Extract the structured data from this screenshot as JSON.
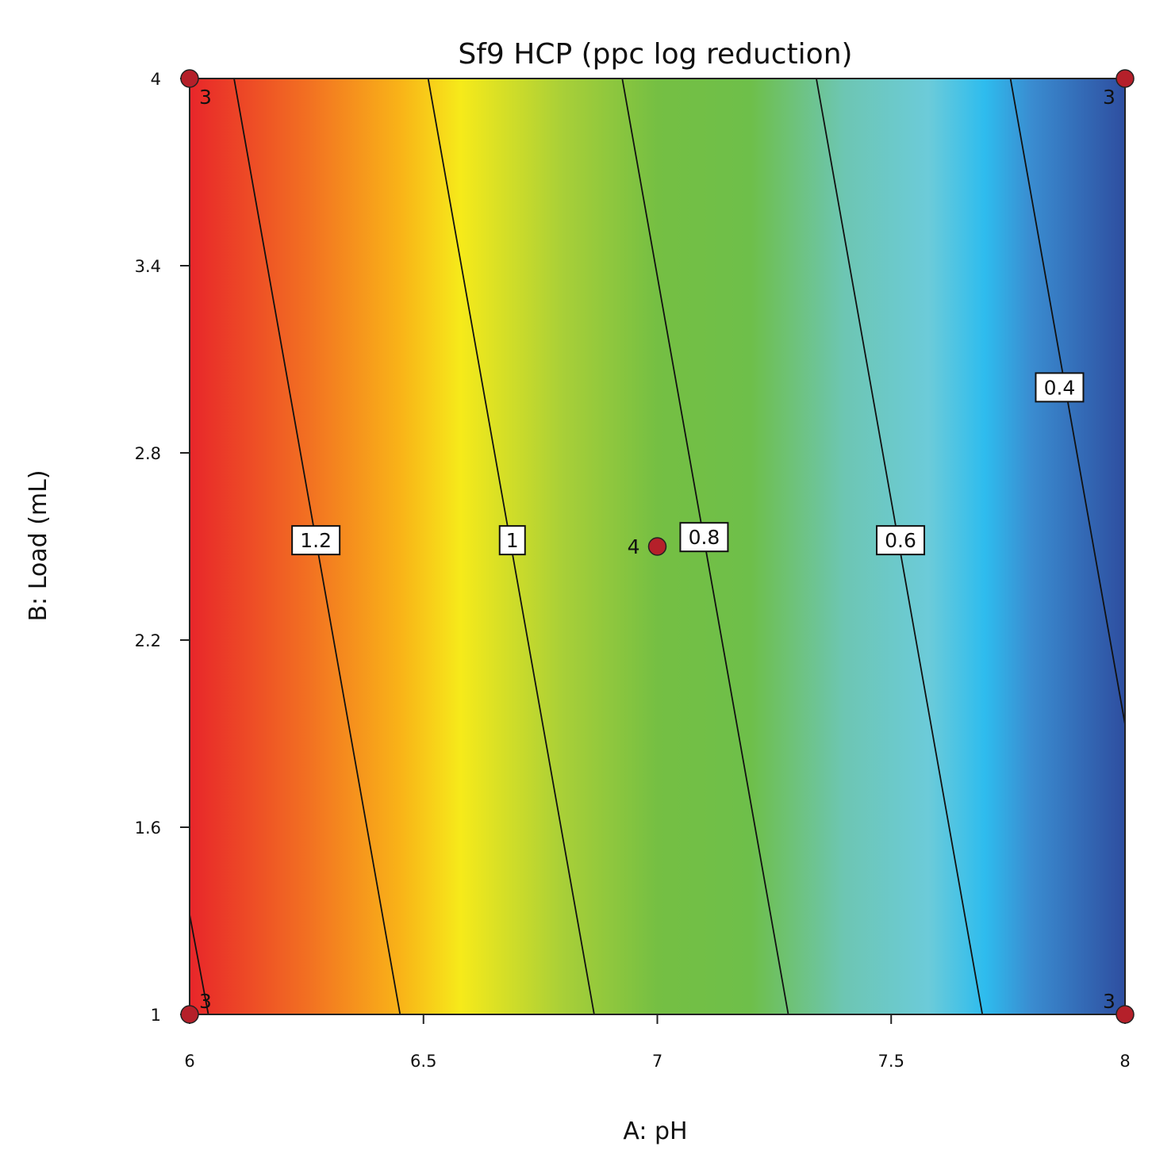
{
  "chart_data": {
    "type": "contour",
    "title": "Sf9 HCP (ppc log reduction)",
    "xlabel": "A: pH",
    "ylabel": "B: Load (mL)",
    "xlim": [
      6,
      8
    ],
    "ylim": [
      1,
      4
    ],
    "x_ticks": [
      6,
      6.5,
      7,
      7.5,
      8
    ],
    "x_tick_labels": [
      "6",
      "6.5",
      "7",
      "7.5",
      "8"
    ],
    "y_ticks": [
      1,
      1.6,
      2.2,
      2.8,
      3.4,
      4
    ],
    "y_tick_labels": [
      "1",
      "1.6",
      "2.2",
      "2.8",
      "3.4",
      "4"
    ],
    "grid": false,
    "colormap": {
      "low": "#2b4fa0",
      "high": "#e8262a",
      "stops": [
        {
          "x": 6.0,
          "color": "#e8262a"
        },
        {
          "x": 6.25,
          "color": "#f26f22"
        },
        {
          "x": 6.45,
          "color": "#f9b318"
        },
        {
          "x": 6.58,
          "color": "#f6ea1a"
        },
        {
          "x": 6.8,
          "color": "#a8cf38"
        },
        {
          "x": 7.0,
          "color": "#75bf43"
        },
        {
          "x": 7.2,
          "color": "#6ebf4a"
        },
        {
          "x": 7.4,
          "color": "#6dc6b3"
        },
        {
          "x": 7.58,
          "color": "#6ccbd9"
        },
        {
          "x": 7.7,
          "color": "#2ebcee"
        },
        {
          "x": 7.8,
          "color": "#3a8cd0"
        },
        {
          "x": 8.0,
          "color": "#2e4ea0"
        }
      ]
    },
    "contours": [
      {
        "label": "1.2",
        "points": [
          [
            6.095,
            4
          ],
          [
            6.45,
            1
          ]
        ],
        "label_at": [
          6.27,
          2.52
        ]
      },
      {
        "label": "1",
        "points": [
          [
            6.51,
            4
          ],
          [
            6.865,
            1
          ]
        ],
        "label_at": [
          6.69,
          2.52
        ]
      },
      {
        "label": "0.8",
        "points": [
          [
            6.925,
            4
          ],
          [
            7.28,
            1
          ]
        ],
        "label_at": [
          7.1,
          2.53
        ]
      },
      {
        "label": "0.6",
        "points": [
          [
            7.34,
            4
          ],
          [
            7.695,
            1
          ]
        ],
        "label_at": [
          7.52,
          2.52
        ]
      },
      {
        "label": "0.4",
        "points": [
          [
            7.755,
            4
          ],
          [
            8.0,
            1.93
          ]
        ],
        "label_at": [
          7.86,
          3.01
        ]
      },
      {
        "label": "",
        "points": [
          [
            6.0,
            1.32
          ],
          [
            6.04,
            1
          ]
        ],
        "label_at": null
      }
    ],
    "design_points": [
      {
        "x": 6,
        "y": 4,
        "count": "3",
        "count_pos": "below-right"
      },
      {
        "x": 8,
        "y": 4,
        "count": "3",
        "count_pos": "below-left"
      },
      {
        "x": 6,
        "y": 1,
        "count": "3",
        "count_pos": "above-right"
      },
      {
        "x": 8,
        "y": 1,
        "count": "3",
        "count_pos": "above-left"
      },
      {
        "x": 7,
        "y": 2.5,
        "count": "4",
        "count_pos": "left"
      }
    ],
    "point_color": "#b5202a"
  }
}
